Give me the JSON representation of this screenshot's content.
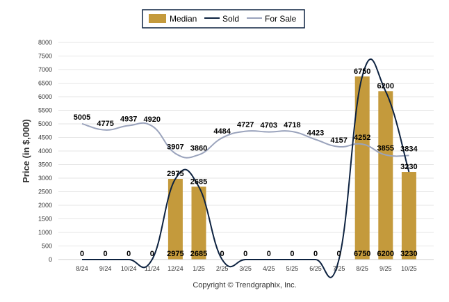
{
  "chart_data": {
    "type": "bar",
    "categories": [
      "8/24",
      "9/24",
      "10/24",
      "11/24",
      "12/24",
      "1/25",
      "2/25",
      "3/25",
      "4/25",
      "5/25",
      "6/25",
      "7/25",
      "8/25",
      "9/25",
      "10/25"
    ],
    "series": [
      {
        "name": "Median",
        "kind": "bar",
        "color": "#C49A3C",
        "values": [
          0,
          0,
          0,
          0,
          2975,
          2685,
          0,
          0,
          0,
          0,
          0,
          0,
          6750,
          6200,
          3230
        ]
      },
      {
        "name": "Sold",
        "kind": "line",
        "color": "#0D2240",
        "values": [
          0,
          0,
          0,
          0,
          2975,
          2685,
          0,
          0,
          0,
          0,
          0,
          0,
          6750,
          6200,
          3230
        ]
      },
      {
        "name": "For Sale",
        "kind": "line",
        "color": "#9AA3BC",
        "values": [
          5005,
          4775,
          4937,
          4920,
          3907,
          3860,
          4484,
          4727,
          4703,
          4718,
          4423,
          4157,
          4252,
          3855,
          3834
        ]
      }
    ],
    "ylabel": "Price (in $,000)",
    "xlabel": "",
    "ylim": [
      0,
      8000
    ],
    "yticks": [
      0,
      500,
      1000,
      1500,
      2000,
      2500,
      3000,
      3500,
      4000,
      4500,
      5000,
      5500,
      6000,
      6500,
      7000,
      7500,
      8000
    ],
    "grid": true,
    "legend_position": "top-center"
  },
  "footer": {
    "copyright": "Copyright © Trendgraphix, Inc."
  }
}
